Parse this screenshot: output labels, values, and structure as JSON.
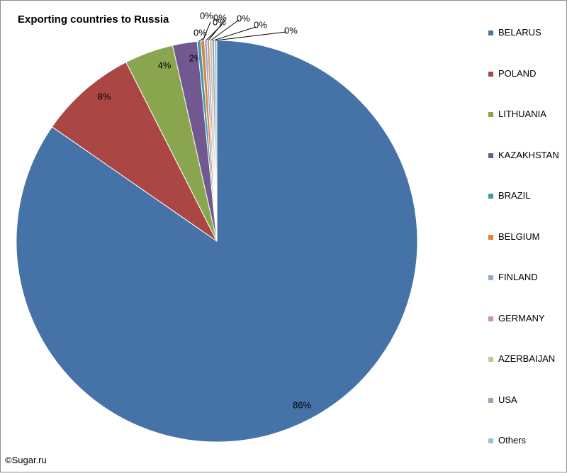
{
  "chart_data": {
    "type": "pie",
    "title": "Exporting countries to Russia",
    "categories": [
      "BELARUS",
      "POLAND",
      "LITHUANIA",
      "KAZAKHSTAN",
      "BRAZIL",
      "BELGIUM",
      "FINLAND",
      "GERMANY",
      "AZERBAIJAN",
      "USA",
      "Others"
    ],
    "values": [
      86,
      8,
      4,
      2,
      0.3,
      0.3,
      0.2,
      0.2,
      0.2,
      0.2,
      0.2
    ],
    "data_labels": [
      "86%",
      "8%",
      "4%",
      "2%",
      "0%",
      "0%",
      "0%",
      "0%",
      "0%",
      "0%",
      "0%"
    ],
    "colors": [
      "#4572a7",
      "#aa4643",
      "#89a54e",
      "#71588f",
      "#4198af",
      "#db843d",
      "#93a9cf",
      "#d19392",
      "#b9cd96",
      "#a99bbd",
      "#92c5d6"
    ],
    "legend_position": "right"
  },
  "credit": "©Sugar.ru"
}
